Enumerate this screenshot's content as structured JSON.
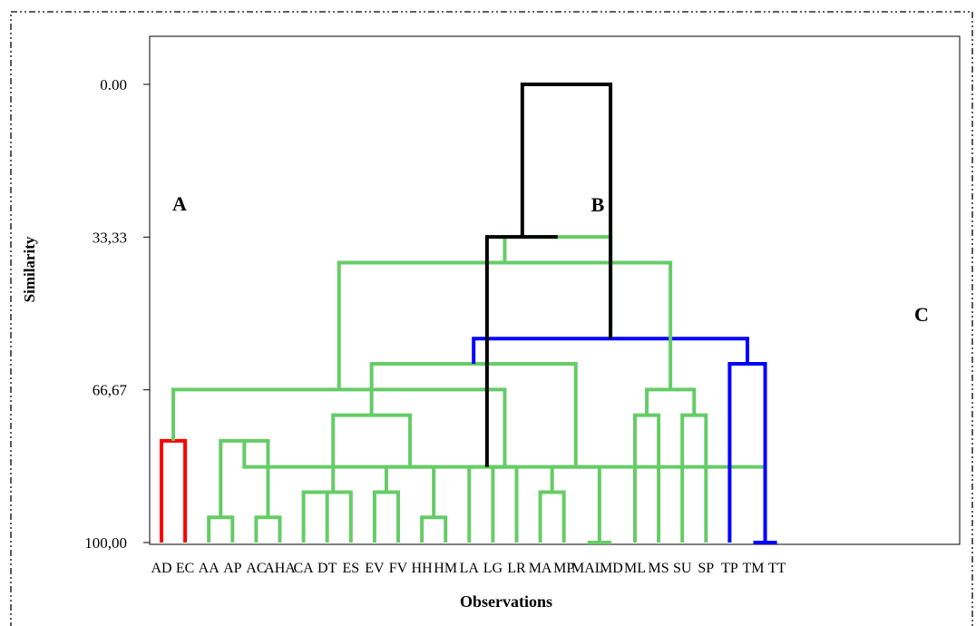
{
  "chart_data": {
    "type": "dendrogram",
    "xlabel": "Observations",
    "ylabel": "Similarity",
    "ylim": [
      100,
      0
    ],
    "y_ticks": [
      "0.00",
      "33,33",
      "66,67",
      "100,00"
    ],
    "y_tick_values": [
      0,
      33.33,
      66.67,
      100
    ],
    "leaves": [
      "AD",
      "EC",
      "AA",
      "AP",
      "AC",
      "AHA",
      "CA",
      "DT",
      "ES",
      "EV",
      "FV",
      "HH",
      "HM",
      "LA",
      "LG",
      "LR",
      "MA",
      "MP",
      "MAL",
      "MD",
      "ML",
      "MS",
      "SU",
      "SP",
      "TP",
      "TM",
      "TT"
    ],
    "cluster_labels": [
      {
        "text": "A",
        "near_leaf": 0
      },
      {
        "text": "B",
        "near_leaf": 18.5
      },
      {
        "text": "C",
        "near_leaf": 25
      }
    ],
    "colors": {
      "A": "#ff0000",
      "B": "#66cc66",
      "C": "#0000ff",
      "root": "#000000",
      "frame": "#000000"
    },
    "merges": [
      {
        "left": 0,
        "right": 1,
        "height": 77.8,
        "group": "A"
      },
      {
        "left": 2,
        "right": 3,
        "height": 94.5,
        "group": "B"
      },
      {
        "left": 4,
        "right": 5,
        "height": 94.5,
        "group": "B"
      },
      {
        "left": 6,
        "right": 7,
        "height": 89,
        "group": "B"
      },
      {
        "left": 9,
        "right": 10,
        "height": 89,
        "group": "B"
      },
      {
        "left": 11,
        "right": 12,
        "height": 94.5,
        "group": "B"
      },
      {
        "left": 14,
        "right": 15,
        "height": 83.5,
        "group": "B"
      },
      {
        "left": 16,
        "right": 17,
        "height": 89,
        "group": "B"
      },
      {
        "left": 18,
        "right": 19,
        "height": 100,
        "group": "B"
      },
      {
        "left": 25,
        "right": 26,
        "height": 100,
        "group": "C"
      },
      {
        "left": 28,
        "right": 29,
        "height": 77.8,
        "group": "B"
      },
      {
        "left": 30,
        "right": 8,
        "height": 89,
        "group": "B"
      },
      {
        "left": 32,
        "right": 31,
        "height": 83.5,
        "group": "B"
      },
      {
        "left": 13,
        "right": 33,
        "height": 83.5,
        "group": "B"
      },
      {
        "left": 34,
        "right": 35,
        "height": 83.5,
        "group": "B"
      },
      {
        "left": 36,
        "right": 37,
        "height": 83.5,
        "group": "B"
      },
      {
        "left": 38,
        "right": 39,
        "height": 72.2,
        "group": "B"
      },
      {
        "left": 20,
        "right": 21,
        "height": 72.2,
        "group": "B"
      },
      {
        "left": 22,
        "right": 23,
        "height": 72.2,
        "group": "B"
      },
      {
        "left": 24,
        "right": 36,
        "height": 61,
        "group": "C"
      },
      {
        "left": 27,
        "right": 42,
        "height": 66.6,
        "group": "B"
      },
      {
        "left": 44,
        "right": 45,
        "height": 66.6,
        "group": "B"
      },
      {
        "left": 43,
        "right": 41,
        "height": 61,
        "group": "B"
      },
      {
        "left": 46,
        "right": 49,
        "height": 55.5,
        "group": "C"
      },
      {
        "left": 48,
        "right": 47,
        "height": 38.9,
        "group": "B"
      },
      {
        "left": 50,
        "right": 51,
        "height": 33.3,
        "group": "B"
      },
      {
        "left": 40,
        "right": 52,
        "height": 33.3,
        "group": "root"
      },
      {
        "left": 53,
        "right": 50,
        "height": 0,
        "group": "root"
      }
    ]
  }
}
